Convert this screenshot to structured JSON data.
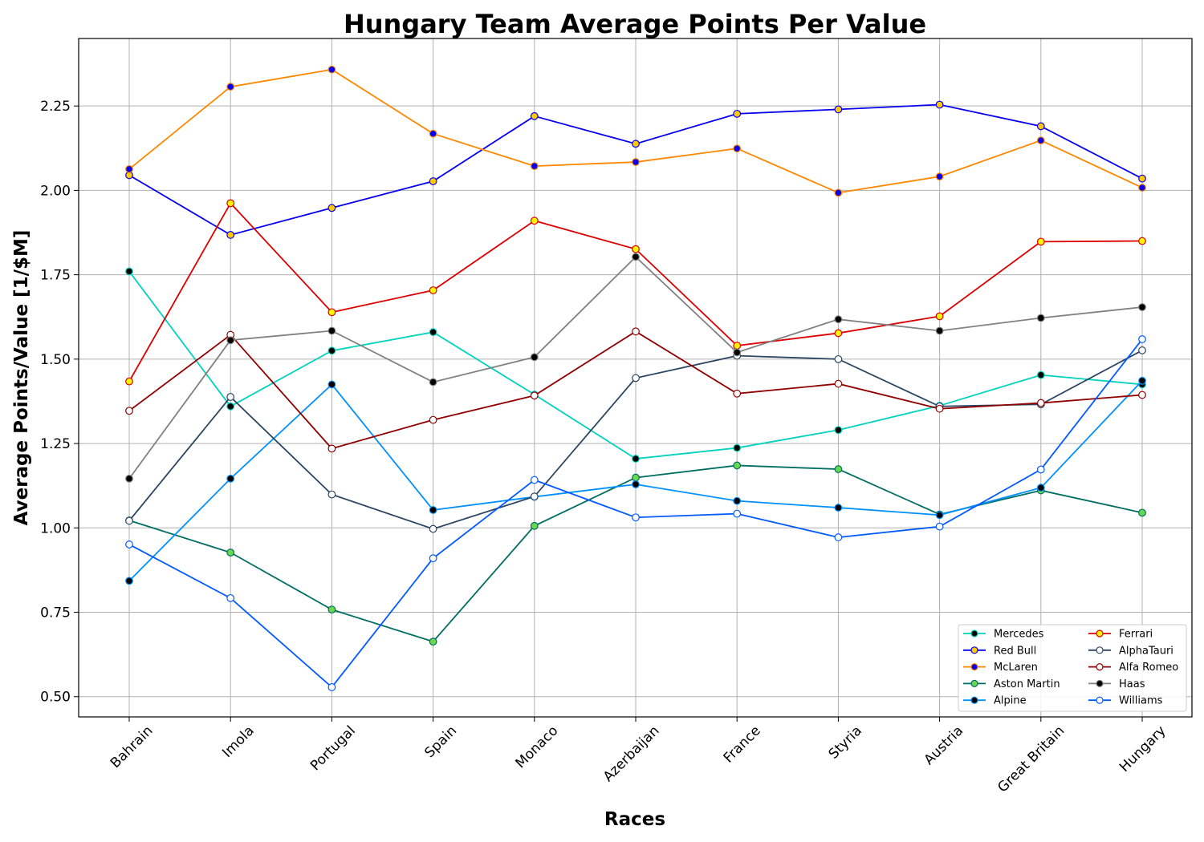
{
  "chart_data": {
    "type": "line",
    "title": "Hungary Team Average Points Per Value",
    "xlabel": "Races",
    "ylabel": "Average Points/Value [1/$M]",
    "categories": [
      "Bahrain",
      "Imola",
      "Portugal",
      "Spain",
      "Monaco",
      "Azerbaijan",
      "France",
      "Styria",
      "Austria",
      "Great Britain",
      "Hungary"
    ],
    "ylim": [
      0.44,
      2.45
    ],
    "yticks": [
      "0.50",
      "0.75",
      "1.00",
      "1.25",
      "1.50",
      "1.75",
      "2.00",
      "2.25"
    ],
    "grid": true,
    "legend_position": "lower-right",
    "series": [
      {
        "name": "Mercedes",
        "line_color": "#00d2be",
        "marker_face": "#000000",
        "marker_edge": "#00d2be",
        "values": [
          1.76,
          1.36,
          1.525,
          1.58,
          1.395,
          1.205,
          1.237,
          1.29,
          1.362,
          1.453,
          1.425
        ]
      },
      {
        "name": "Red Bull",
        "line_color": "#0600ef",
        "marker_face": "#ffc906",
        "marker_edge": "#0600ef",
        "values": [
          2.045,
          1.868,
          1.948,
          2.027,
          2.22,
          2.138,
          2.227,
          2.24,
          2.254,
          2.19,
          2.035
        ]
      },
      {
        "name": "McLaren",
        "line_color": "#ff8700",
        "marker_face": "#0600ef",
        "marker_edge": "#ff8700",
        "values": [
          2.063,
          2.307,
          2.358,
          2.168,
          2.072,
          2.084,
          2.124,
          1.993,
          2.041,
          2.148,
          2.008
        ]
      },
      {
        "name": "Aston Martin",
        "line_color": "#006f62",
        "marker_face": "#6ad84f",
        "marker_edge": "#006f62",
        "values": [
          1.022,
          0.927,
          0.758,
          0.663,
          1.006,
          1.149,
          1.185,
          1.174,
          1.04,
          1.111,
          1.045
        ]
      },
      {
        "name": "Alpine",
        "line_color": "#0090ff",
        "marker_face": "#000000",
        "marker_edge": "#0090ff",
        "values": [
          0.843,
          1.146,
          1.425,
          1.053,
          1.092,
          1.129,
          1.08,
          1.06,
          1.038,
          1.119,
          1.436
        ]
      },
      {
        "name": "Ferrari",
        "line_color": "#dc0000",
        "marker_face": "#fff500",
        "marker_edge": "#dc0000",
        "values": [
          1.434,
          1.962,
          1.639,
          1.704,
          1.91,
          1.826,
          1.54,
          1.577,
          1.627,
          1.848,
          1.85
        ]
      },
      {
        "name": "AlphaTauri",
        "line_color": "#2b4562",
        "marker_face": "#ffffff",
        "marker_edge": "#2b4562",
        "values": [
          1.021,
          1.388,
          1.099,
          0.997,
          1.093,
          1.444,
          1.51,
          1.5,
          1.36,
          1.366,
          1.526
        ]
      },
      {
        "name": "Alfa Romeo",
        "line_color": "#900000",
        "marker_face": "#ffffff",
        "marker_edge": "#900000",
        "values": [
          1.347,
          1.572,
          1.235,
          1.32,
          1.392,
          1.582,
          1.398,
          1.427,
          1.353,
          1.37,
          1.394
        ]
      },
      {
        "name": "Haas",
        "line_color": "#808080",
        "marker_face": "#000000",
        "marker_edge": "#808080",
        "values": [
          1.146,
          1.556,
          1.584,
          1.432,
          1.506,
          1.803,
          1.52,
          1.618,
          1.584,
          1.622,
          1.654
        ]
      },
      {
        "name": "Williams",
        "line_color": "#005aff",
        "marker_face": "#ffffff",
        "marker_edge": "#005aff",
        "values": [
          0.951,
          0.792,
          0.528,
          0.91,
          1.142,
          1.031,
          1.042,
          0.972,
          1.004,
          1.173,
          1.559
        ]
      }
    ]
  }
}
